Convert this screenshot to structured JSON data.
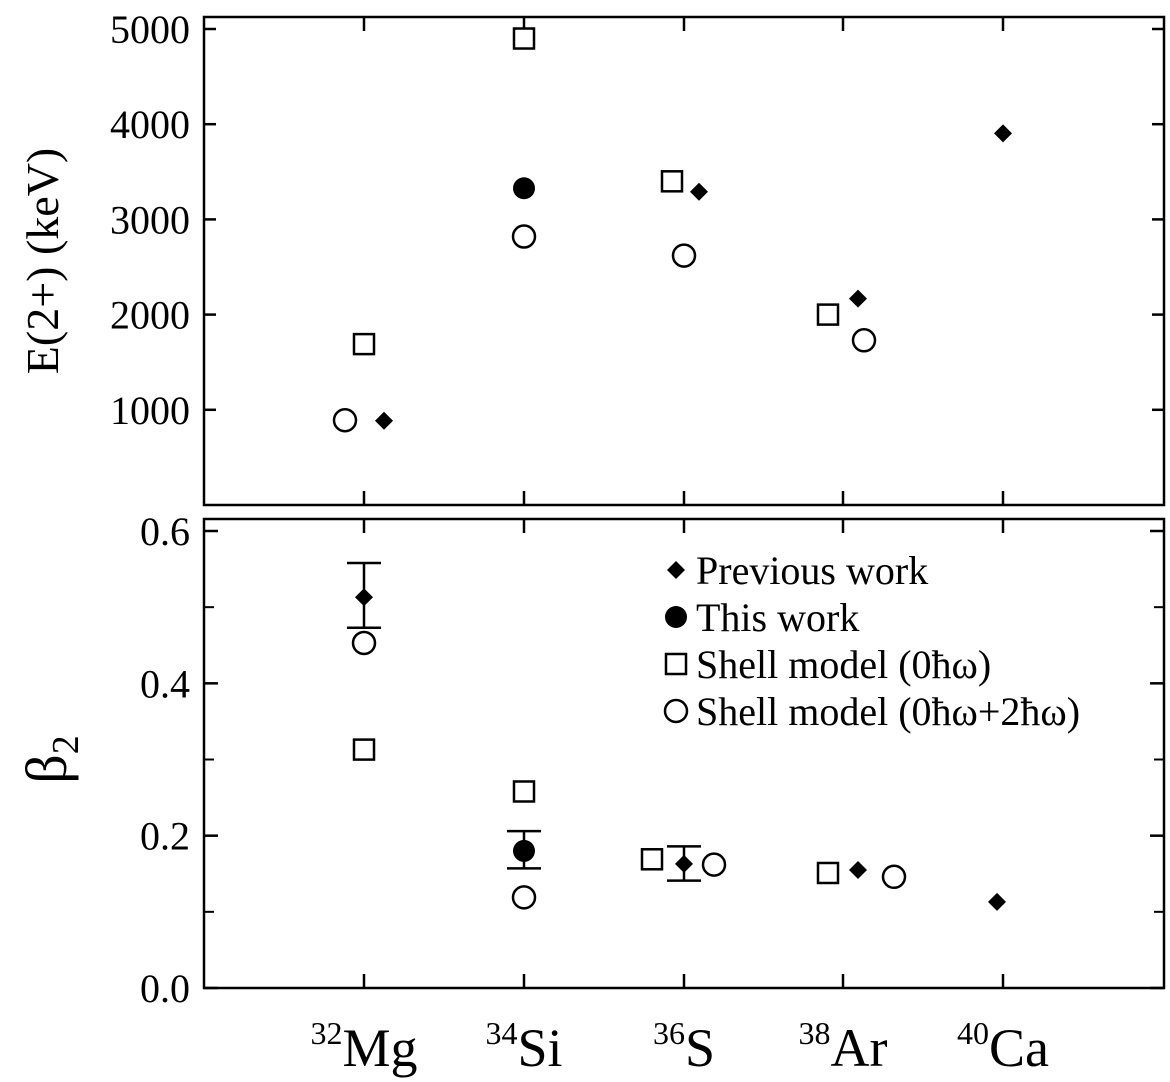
{
  "chart_data": [
    {
      "type": "scatter",
      "panel": "top",
      "ylabel": "E(2+) (keV)",
      "ylim": [
        0,
        5000
      ],
      "yticks": [
        1000,
        2000,
        3000,
        4000,
        5000
      ],
      "categories": [
        {
          "mass": "32",
          "symbol": "Mg"
        },
        {
          "mass": "34",
          "symbol": "Si"
        },
        {
          "mass": "36",
          "symbol": "S"
        },
        {
          "mass": "38",
          "symbol": "Ar"
        },
        {
          "mass": "40",
          "symbol": "Ca"
        }
      ],
      "series": [
        {
          "name": "Previous work",
          "marker": "diamond-filled",
          "points": [
            {
              "x": "32Mg",
              "y": 885
            },
            {
              "x": "36S",
              "y": 3291
            },
            {
              "x": "38Ar",
              "y": 2168
            },
            {
              "x": "40Ca",
              "y": 3904
            }
          ]
        },
        {
          "name": "This work",
          "marker": "circle-filled",
          "points": [
            {
              "x": "34Si",
              "y": 3327
            }
          ]
        },
        {
          "name": "Shell model (0ħω)",
          "marker": "square-open",
          "points": [
            {
              "x": "32Mg",
              "y": 1690
            },
            {
              "x": "34Si",
              "y": 4900
            },
            {
              "x": "36S",
              "y": 3400
            },
            {
              "x": "38Ar",
              "y": 2000
            }
          ]
        },
        {
          "name": "Shell model (0ħω+2ħω)",
          "marker": "circle-open",
          "points": [
            {
              "x": "32Mg",
              "y": 890
            },
            {
              "x": "34Si",
              "y": 2820
            },
            {
              "x": "36S",
              "y": 2620
            },
            {
              "x": "38Ar",
              "y": 1730
            }
          ]
        }
      ]
    },
    {
      "type": "scatter",
      "panel": "bottom",
      "ylabel": "β2",
      "ylim": [
        0.0,
        0.6
      ],
      "yticks": [
        "0.0",
        "0.2",
        "0.4",
        "0.6"
      ],
      "series": [
        {
          "name": "Previous work",
          "marker": "diamond-filled",
          "points": [
            {
              "x": "32Mg",
              "y": 0.513,
              "yerr_low": 0.473,
              "yerr_high": 0.558
            },
            {
              "x": "36S",
              "y": 0.163,
              "yerr_low": 0.141,
              "yerr_high": 0.186
            },
            {
              "x": "38Ar",
              "y": 0.155
            },
            {
              "x": "40Ca",
              "y": 0.113
            }
          ]
        },
        {
          "name": "This work",
          "marker": "circle-filled",
          "points": [
            {
              "x": "34Si",
              "y": 0.18,
              "yerr_low": 0.157,
              "yerr_high": 0.206
            }
          ]
        },
        {
          "name": "Shell model (0ħω)",
          "marker": "square-open",
          "points": [
            {
              "x": "32Mg",
              "y": 0.313
            },
            {
              "x": "34Si",
              "y": 0.258
            },
            {
              "x": "36S",
              "y": 0.169
            },
            {
              "x": "38Ar",
              "y": 0.151
            }
          ]
        },
        {
          "name": "Shell model (0ħω+2ħω)",
          "marker": "circle-open",
          "points": [
            {
              "x": "32Mg",
              "y": 0.453
            },
            {
              "x": "34Si",
              "y": 0.119
            },
            {
              "x": "36S",
              "y": 0.162
            },
            {
              "x": "38Ar",
              "y": 0.146
            }
          ]
        }
      ]
    }
  ],
  "legend": {
    "placement": "inside-upper-right-bottom-panel",
    "entries": [
      {
        "marker": "diamond-filled",
        "label": "Previous work"
      },
      {
        "marker": "circle-filled",
        "label": "This work"
      },
      {
        "marker": "square-open",
        "label": "Shell model (0ħω)"
      },
      {
        "marker": "circle-open",
        "label": "Shell model (0ħω+2ħω)"
      }
    ]
  }
}
